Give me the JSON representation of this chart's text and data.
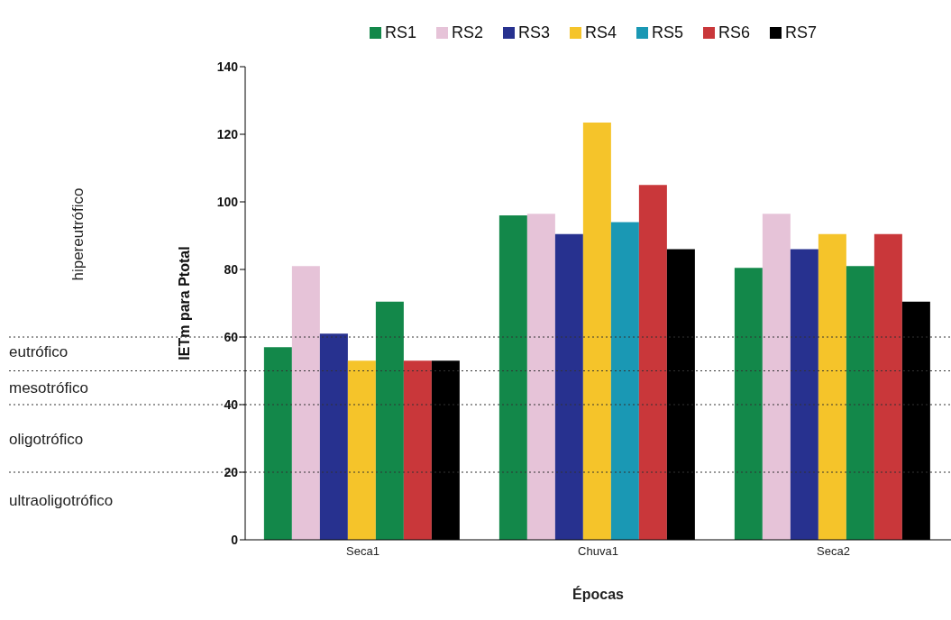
{
  "chart_data": {
    "type": "bar",
    "xlabel": "Épocas",
    "ylabel": "IETm para Ptotal",
    "categories": [
      "Seca1",
      "Chuva1",
      "Seca2"
    ],
    "series": [
      {
        "name": "RS1",
        "color": "#13884a",
        "values": [
          57,
          96,
          80.5
        ]
      },
      {
        "name": "RS2",
        "color": "#e6c3d8",
        "values": [
          81,
          96.5,
          96.5
        ]
      },
      {
        "name": "RS3",
        "color": "#27318f",
        "values": [
          61,
          90.5,
          86
        ]
      },
      {
        "name": "RS4",
        "color": "#f5c42a",
        "values": [
          53,
          123.5,
          90.5
        ]
      },
      {
        "name": "RS5",
        "color": "#1a98b4",
        "colors": [
          "#13884a",
          "#1a98b4",
          "#13884a"
        ],
        "values": [
          70.5,
          94,
          81
        ]
      },
      {
        "name": "RS6",
        "color": "#c9373a",
        "values": [
          53,
          105,
          90.5
        ]
      },
      {
        "name": "RS7",
        "color": "#000000",
        "values": [
          53,
          86,
          70.5
        ]
      }
    ],
    "ylim": [
      0,
      140
    ],
    "yticks": [
      0,
      20,
      40,
      60,
      80,
      100,
      120,
      140
    ],
    "grid": false,
    "legend": "top",
    "ref_lines": [
      {
        "axis": "y",
        "value": 60,
        "line_style": "dotted"
      },
      {
        "axis": "y",
        "value": 50,
        "line_style": "dotted"
      },
      {
        "axis": "y",
        "value": 40,
        "line_style": "dotted"
      },
      {
        "axis": "y",
        "value": 20,
        "line_style": "dotted"
      }
    ],
    "annotations": [
      "hipereutrófico",
      "eutrófico",
      "mesotrófico",
      "oligotrófico",
      "ultraoligotrófico"
    ]
  }
}
